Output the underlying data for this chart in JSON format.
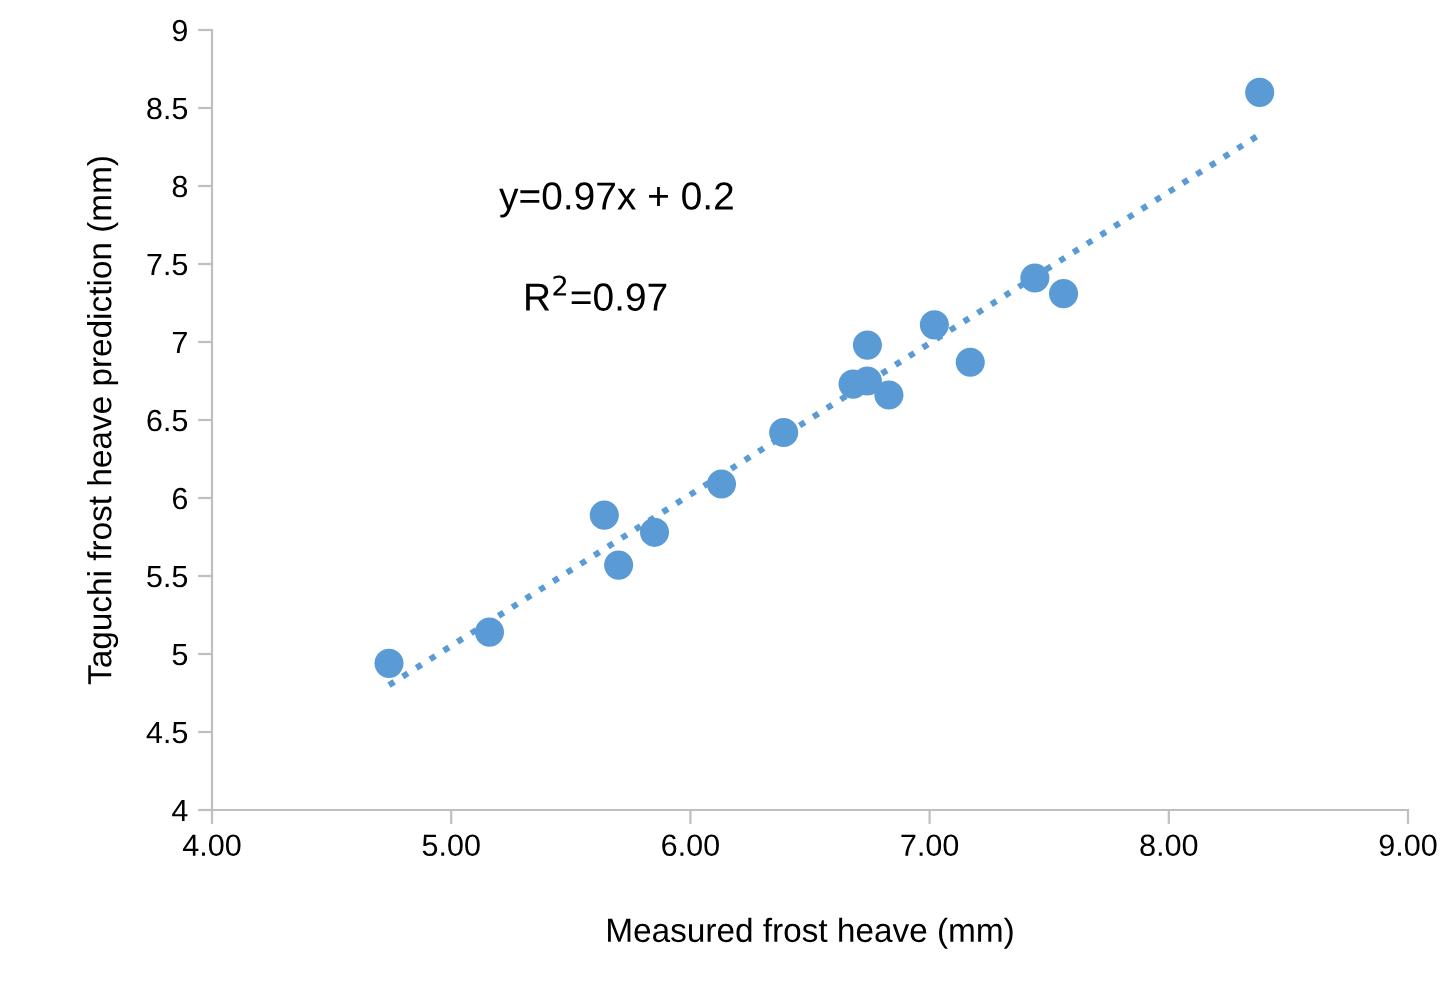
{
  "chart_data": {
    "type": "scatter",
    "xlabel": "Measured frost heave (mm)",
    "ylabel": "Taguchi frost heave prediction (mm)",
    "annotations": [
      "y=0.97x + 0.2",
      "R$^{2}$=0.97"
    ],
    "xlim": [
      4,
      9
    ],
    "ylim": [
      4,
      9
    ],
    "xticks": [
      {
        "value": 4,
        "label": "4.00"
      },
      {
        "value": 5,
        "label": "5.00"
      },
      {
        "value": 6,
        "label": "6.00"
      },
      {
        "value": 7,
        "label": "7.00"
      },
      {
        "value": 8,
        "label": "8.00"
      },
      {
        "value": 9,
        "label": "9.00"
      }
    ],
    "yticks": [
      4,
      4.5,
      5,
      5.5,
      6,
      6.5,
      7,
      7.5,
      8,
      8.5,
      9
    ],
    "grid": false,
    "legend": false,
    "series": [
      {
        "color": "#5b9bd5",
        "marker": "circle",
        "x": [
          4.74,
          5.16,
          5.64,
          5.7,
          5.85,
          6.13,
          6.39,
          6.68,
          6.74,
          6.74,
          6.83,
          7.02,
          7.17,
          7.44,
          7.56,
          8.38
        ],
        "values": [
          4.94,
          5.14,
          5.89,
          5.57,
          5.78,
          6.09,
          6.42,
          6.73,
          6.75,
          6.98,
          6.66,
          7.11,
          6.87,
          7.41,
          7.31,
          8.6
        ]
      },
      {
        "type": "line",
        "color": "#5b9bd5",
        "line_style": "dotted",
        "marker": "none",
        "x": [
          4.74,
          8.38
        ],
        "values": [
          4.8,
          8.33
        ]
      }
    ]
  }
}
